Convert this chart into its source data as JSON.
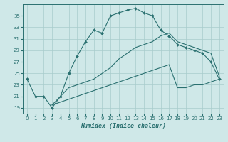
{
  "xlabel": "Humidex (Indice chaleur)",
  "ylabel": "",
  "background_color": "#cfe8e8",
  "grid_color": "#a8cccc",
  "line_color": "#2a7070",
  "xlim": [
    -0.5,
    23.5
  ],
  "ylim": [
    18.0,
    37.0
  ],
  "xticks": [
    0,
    1,
    2,
    3,
    4,
    5,
    6,
    7,
    8,
    9,
    10,
    11,
    12,
    13,
    14,
    15,
    16,
    17,
    18,
    19,
    20,
    21,
    22,
    23
  ],
  "yticks": [
    19,
    21,
    23,
    25,
    27,
    29,
    31,
    33,
    35
  ],
  "series1_x": [
    0,
    1,
    2,
    3,
    4,
    5,
    6,
    7,
    8,
    9,
    10,
    11,
    12,
    13,
    14,
    15,
    16,
    17,
    18,
    19,
    20,
    21,
    22,
    23
  ],
  "series1_y": [
    24.0,
    21.0,
    21.0,
    19.0,
    21.0,
    25.0,
    28.0,
    30.5,
    32.5,
    32.0,
    35.0,
    35.5,
    36.0,
    36.3,
    35.5,
    35.0,
    32.5,
    31.5,
    30.0,
    29.5,
    29.0,
    28.5,
    27.0,
    24.0
  ],
  "series2_x": [
    3,
    4,
    5,
    6,
    7,
    8,
    9,
    10,
    11,
    12,
    13,
    14,
    15,
    16,
    17,
    18,
    19,
    20,
    21,
    22,
    23
  ],
  "series2_y": [
    19.5,
    21.0,
    22.5,
    23.0,
    23.5,
    24.0,
    25.0,
    26.0,
    27.5,
    28.5,
    29.5,
    30.0,
    30.5,
    31.5,
    32.0,
    30.5,
    30.0,
    29.5,
    29.0,
    28.5,
    24.5
  ],
  "series3_x": [
    3,
    4,
    5,
    6,
    7,
    8,
    9,
    10,
    11,
    12,
    13,
    14,
    15,
    16,
    17,
    18,
    19,
    20,
    21,
    22,
    23
  ],
  "series3_y": [
    19.5,
    20.0,
    20.5,
    21.0,
    21.5,
    22.0,
    22.5,
    23.0,
    23.5,
    24.0,
    24.5,
    25.0,
    25.5,
    26.0,
    26.5,
    22.5,
    22.5,
    23.0,
    23.0,
    23.5,
    24.0
  ]
}
